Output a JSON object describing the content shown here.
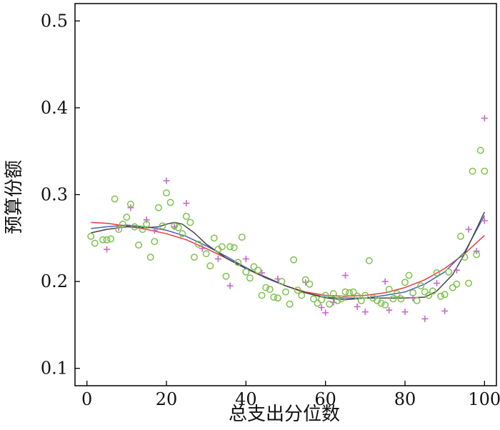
{
  "chart_data": {
    "type": "scatter",
    "title": "",
    "xlabel": "总支出分位数",
    "ylabel": "预算份额",
    "xlim": [
      -3,
      103
    ],
    "ylim": [
      0.08,
      0.52
    ],
    "xticks": [
      0,
      20,
      40,
      60,
      80,
      100
    ],
    "yticks": [
      0.1,
      0.2,
      0.3,
      0.4,
      0.5
    ],
    "xtick_labels": [
      "0",
      "20",
      "40",
      "60",
      "80",
      "100"
    ],
    "ytick_labels": [
      "0.1",
      "0.2",
      "0.3",
      "0.4",
      "0.5"
    ],
    "grid": false,
    "colors": {
      "circles": "#7dc24b",
      "plus": "#cc66cc",
      "red_line": "#ee3b3b",
      "blue_line": "#4a62b8",
      "gray_line": "#444444",
      "axis": "#000000"
    },
    "scatter_circles": [
      [
        1,
        0.252
      ],
      [
        2,
        0.244
      ],
      [
        4,
        0.248
      ],
      [
        5,
        0.248
      ],
      [
        6,
        0.249
      ],
      [
        7,
        0.295
      ],
      [
        8,
        0.26
      ],
      [
        9,
        0.266
      ],
      [
        10,
        0.274
      ],
      [
        11,
        0.289
      ],
      [
        12,
        0.263
      ],
      [
        13,
        0.242
      ],
      [
        14,
        0.26
      ],
      [
        15,
        0.266
      ],
      [
        16,
        0.228
      ],
      [
        17,
        0.246
      ],
      [
        18,
        0.285
      ],
      [
        19,
        0.264
      ],
      [
        20,
        0.302
      ],
      [
        21,
        0.291
      ],
      [
        22,
        0.264
      ],
      [
        23,
        0.262
      ],
      [
        24,
        0.255
      ],
      [
        25,
        0.275
      ],
      [
        26,
        0.268
      ],
      [
        27,
        0.228
      ],
      [
        28,
        0.243
      ],
      [
        30,
        0.232
      ],
      [
        31,
        0.218
      ],
      [
        32,
        0.25
      ],
      [
        33,
        0.237
      ],
      [
        34,
        0.24
      ],
      [
        35,
        0.206
      ],
      [
        36,
        0.24
      ],
      [
        37,
        0.239
      ],
      [
        38,
        0.222
      ],
      [
        39,
        0.251
      ],
      [
        40,
        0.211
      ],
      [
        41,
        0.204
      ],
      [
        42,
        0.217
      ],
      [
        43,
        0.213
      ],
      [
        44,
        0.184
      ],
      [
        45,
        0.193
      ],
      [
        46,
        0.191
      ],
      [
        47,
        0.182
      ],
      [
        48,
        0.181
      ],
      [
        49,
        0.2
      ],
      [
        50,
        0.188
      ],
      [
        51,
        0.174
      ],
      [
        52,
        0.225
      ],
      [
        53,
        0.19
      ],
      [
        54,
        0.184
      ],
      [
        55,
        0.202
      ],
      [
        56,
        0.197
      ],
      [
        57,
        0.18
      ],
      [
        58,
        0.175
      ],
      [
        59,
        0.179
      ],
      [
        60,
        0.184
      ],
      [
        61,
        0.174
      ],
      [
        62,
        0.186
      ],
      [
        63,
        0.178
      ],
      [
        64,
        0.18
      ],
      [
        65,
        0.188
      ],
      [
        66,
        0.187
      ],
      [
        67,
        0.188
      ],
      [
        68,
        0.183
      ],
      [
        69,
        0.178
      ],
      [
        70,
        0.184
      ],
      [
        71,
        0.224
      ],
      [
        72,
        0.181
      ],
      [
        73,
        0.178
      ],
      [
        74,
        0.175
      ],
      [
        75,
        0.173
      ],
      [
        76,
        0.191
      ],
      [
        77,
        0.18
      ],
      [
        78,
        0.186
      ],
      [
        79,
        0.18
      ],
      [
        80,
        0.199
      ],
      [
        81,
        0.207
      ],
      [
        82,
        0.187
      ],
      [
        83,
        0.178
      ],
      [
        84,
        0.195
      ],
      [
        85,
        0.188
      ],
      [
        86,
        0.184
      ],
      [
        87,
        0.189
      ],
      [
        88,
        0.21
      ],
      [
        89,
        0.183
      ],
      [
        90,
        0.185
      ],
      [
        91,
        0.211
      ],
      [
        92,
        0.193
      ],
      [
        93,
        0.197
      ],
      [
        94,
        0.252
      ],
      [
        95,
        0.228
      ],
      [
        96,
        0.198
      ],
      [
        97,
        0.327
      ],
      [
        98,
        0.231
      ],
      [
        99,
        0.351
      ],
      [
        100,
        0.327
      ]
    ],
    "scatter_plus": [
      [
        5,
        0.237
      ],
      [
        8,
        0.262
      ],
      [
        11,
        0.285
      ],
      [
        15,
        0.271
      ],
      [
        17,
        0.259
      ],
      [
        20,
        0.316
      ],
      [
        22,
        0.263
      ],
      [
        25,
        0.29
      ],
      [
        29,
        0.238
      ],
      [
        33,
        0.226
      ],
      [
        36,
        0.195
      ],
      [
        40,
        0.226
      ],
      [
        44,
        0.21
      ],
      [
        48,
        0.203
      ],
      [
        55,
        0.199
      ],
      [
        59,
        0.17
      ],
      [
        60,
        0.164
      ],
      [
        62,
        0.176
      ],
      [
        65,
        0.207
      ],
      [
        68,
        0.171
      ],
      [
        70,
        0.165
      ],
      [
        75,
        0.2
      ],
      [
        76,
        0.167
      ],
      [
        80,
        0.165
      ],
      [
        82,
        0.181
      ],
      [
        85,
        0.157
      ],
      [
        88,
        0.198
      ],
      [
        90,
        0.166
      ],
      [
        93,
        0.213
      ],
      [
        96,
        0.26
      ],
      [
        98,
        0.235
      ],
      [
        100,
        0.388
      ],
      [
        100,
        0.27
      ]
    ],
    "series": [
      {
        "color": "#ee3b3b",
        "x": [
          1,
          5,
          10,
          15,
          20,
          25,
          30,
          35,
          40,
          45,
          50,
          55,
          60,
          65,
          70,
          75,
          80,
          85,
          90,
          95,
          100
        ],
        "y": [
          0.268,
          0.267,
          0.264,
          0.26,
          0.255,
          0.248,
          0.238,
          0.227,
          0.215,
          0.204,
          0.195,
          0.188,
          0.184,
          0.183,
          0.184,
          0.187,
          0.193,
          0.202,
          0.215,
          0.232,
          0.253
        ]
      },
      {
        "color": "#4a62b8",
        "x": [
          1,
          5,
          10,
          15,
          20,
          25,
          30,
          35,
          40,
          45,
          50,
          55,
          60,
          65,
          70,
          75,
          80,
          85,
          90,
          95,
          100
        ],
        "y": [
          0.261,
          0.263,
          0.265,
          0.263,
          0.259,
          0.252,
          0.241,
          0.229,
          0.216,
          0.204,
          0.195,
          0.187,
          0.182,
          0.181,
          0.181,
          0.184,
          0.188,
          0.197,
          0.211,
          0.234,
          0.276
        ]
      },
      {
        "color": "#444444",
        "x": [
          1,
          5,
          10,
          15,
          18,
          20,
          22,
          24,
          27,
          30,
          35,
          40,
          45,
          50,
          55,
          60,
          65,
          70,
          75,
          80,
          85,
          88,
          92,
          95,
          100
        ],
        "y": [
          0.256,
          0.26,
          0.263,
          0.262,
          0.263,
          0.266,
          0.268,
          0.266,
          0.256,
          0.243,
          0.227,
          0.215,
          0.205,
          0.195,
          0.187,
          0.181,
          0.179,
          0.181,
          0.181,
          0.181,
          0.182,
          0.189,
          0.208,
          0.232,
          0.28
        ]
      }
    ]
  }
}
